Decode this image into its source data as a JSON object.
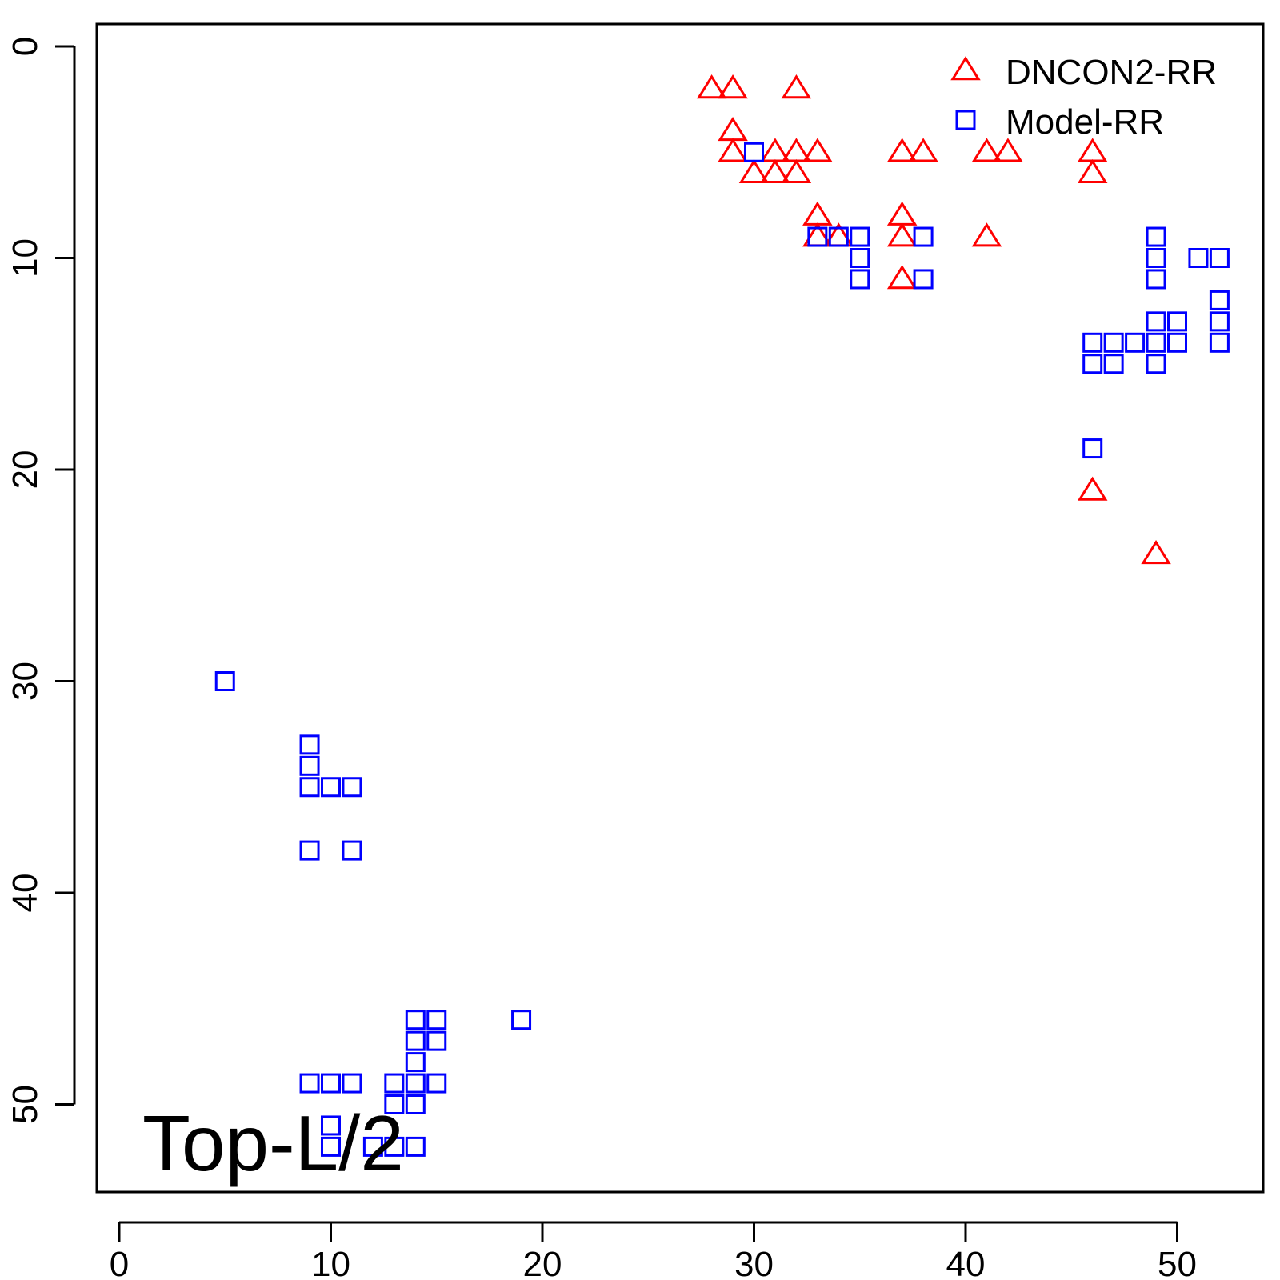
{
  "chart_data": {
    "type": "scatter",
    "title": "",
    "xlabel": "",
    "ylabel": "",
    "xlim": [
      -1,
      54
    ],
    "ylim": [
      -1,
      54
    ],
    "y_reversed": true,
    "x_ticks": [
      0,
      10,
      20,
      30,
      40,
      50
    ],
    "y_ticks": [
      0,
      10,
      20,
      30,
      40,
      50
    ],
    "grid": false,
    "legend_position": "top-right",
    "annotation": "Top-L/2",
    "series": [
      {
        "name": "DNCON2-RR",
        "marker": "triangle",
        "color": "#ff0000",
        "points": [
          [
            28,
            2
          ],
          [
            29,
            2
          ],
          [
            32,
            2
          ],
          [
            29,
            4
          ],
          [
            29,
            5
          ],
          [
            31,
            5
          ],
          [
            32,
            5
          ],
          [
            33,
            5
          ],
          [
            30,
            6
          ],
          [
            31,
            6
          ],
          [
            32,
            6
          ],
          [
            37,
            5
          ],
          [
            38,
            5
          ],
          [
            41,
            5
          ],
          [
            42,
            5
          ],
          [
            46,
            5
          ],
          [
            46,
            6
          ],
          [
            33,
            8
          ],
          [
            37,
            8
          ],
          [
            33,
            9
          ],
          [
            34,
            9
          ],
          [
            37,
            9
          ],
          [
            41,
            9
          ],
          [
            37,
            11
          ],
          [
            46,
            21
          ],
          [
            49,
            24
          ]
        ]
      },
      {
        "name": "Model-RR",
        "marker": "square",
        "color": "#0000ff",
        "points": [
          [
            30,
            5
          ],
          [
            33,
            9
          ],
          [
            34,
            9
          ],
          [
            35,
            9
          ],
          [
            38,
            9
          ],
          [
            35,
            10
          ],
          [
            35,
            11
          ],
          [
            38,
            11
          ],
          [
            49,
            9
          ],
          [
            49,
            10
          ],
          [
            49,
            11
          ],
          [
            51,
            10
          ],
          [
            52,
            10
          ],
          [
            52,
            12
          ],
          [
            49,
            13
          ],
          [
            50,
            13
          ],
          [
            52,
            13
          ],
          [
            46,
            14
          ],
          [
            47,
            14
          ],
          [
            48,
            14
          ],
          [
            49,
            14
          ],
          [
            50,
            14
          ],
          [
            52,
            14
          ],
          [
            46,
            15
          ],
          [
            47,
            15
          ],
          [
            49,
            15
          ],
          [
            46,
            19
          ],
          [
            5,
            30
          ],
          [
            9,
            33
          ],
          [
            9,
            34
          ],
          [
            9,
            35
          ],
          [
            10,
            35
          ],
          [
            11,
            35
          ],
          [
            9,
            38
          ],
          [
            11,
            38
          ],
          [
            14,
            46
          ],
          [
            15,
            46
          ],
          [
            19,
            46
          ],
          [
            14,
            47
          ],
          [
            15,
            47
          ],
          [
            14,
            48
          ],
          [
            9,
            49
          ],
          [
            10,
            49
          ],
          [
            11,
            49
          ],
          [
            13,
            49
          ],
          [
            14,
            49
          ],
          [
            15,
            49
          ],
          [
            13,
            50
          ],
          [
            14,
            50
          ],
          [
            10,
            51
          ],
          [
            10,
            52
          ],
          [
            12,
            52
          ],
          [
            13,
            52
          ],
          [
            14,
            52
          ]
        ]
      }
    ]
  }
}
